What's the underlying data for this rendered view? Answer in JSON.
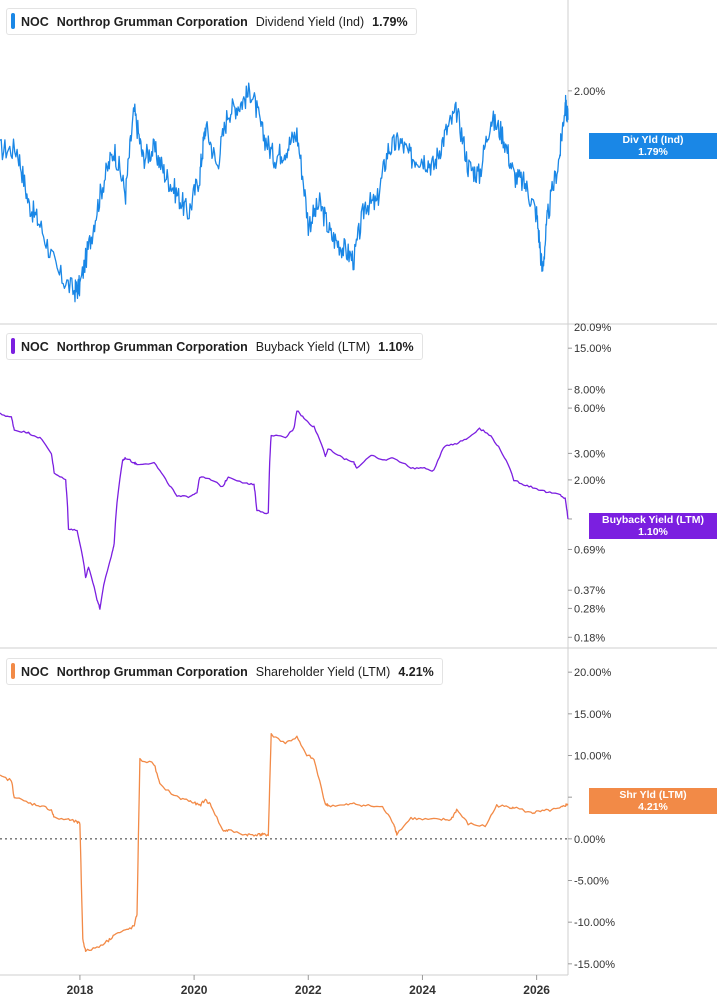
{
  "chart_data": [
    {
      "type": "line",
      "ticker": "NOC",
      "company": "Northrop Grumman Corporation",
      "metric": "Dividend Yield (Ind)",
      "current_value": "1.79%",
      "flag_label": "Div Yld (Ind)",
      "color": "#1a87e6",
      "y_scale": "log",
      "ylim": [
        0.0009,
        0.0225
      ],
      "y_ticks": [
        {
          "v": 0.02,
          "label": "2.00%"
        }
      ],
      "x": [
        2016.6,
        2016.9,
        2017.1,
        2017.3,
        2017.6,
        2017.9,
        2018.0,
        2018.2,
        2018.4,
        2018.6,
        2018.8,
        2018.95,
        2019.1,
        2019.3,
        2019.5,
        2019.7,
        2019.9,
        2020.1,
        2020.2,
        2020.4,
        2020.6,
        2020.8,
        2021.0,
        2021.2,
        2021.4,
        2021.6,
        2021.8,
        2022.0,
        2022.2,
        2022.4,
        2022.6,
        2022.8,
        2023.0,
        2023.2,
        2023.4,
        2023.6,
        2023.8,
        2024.0,
        2024.2,
        2024.4,
        2024.6,
        2024.8,
        2025.0,
        2025.2,
        2025.4,
        2025.6,
        2025.8,
        2026.0,
        2026.1,
        2026.2,
        2026.4,
        2026.5,
        2026.55
      ],
      "values": [
        1.6,
        1.6,
        1.3,
        1.2,
        1.0,
        0.93,
        0.95,
        1.15,
        1.4,
        1.6,
        1.35,
        1.85,
        1.55,
        1.6,
        1.45,
        1.35,
        1.25,
        1.45,
        1.75,
        1.5,
        1.85,
        1.9,
        2.0,
        1.7,
        1.55,
        1.6,
        1.7,
        1.2,
        1.3,
        1.15,
        1.1,
        1.05,
        1.3,
        1.3,
        1.6,
        1.65,
        1.55,
        1.55,
        1.5,
        1.7,
        1.85,
        1.5,
        1.45,
        1.8,
        1.7,
        1.45,
        1.4,
        1.25,
        1.0,
        1.25,
        1.55,
        1.9,
        1.79
      ],
      "ytick_values_pct": [
        2.0
      ],
      "scale_break_label": "20.09%"
    },
    {
      "type": "line",
      "ticker": "NOC",
      "company": "Northrop Grumman Corporation",
      "metric": "Buyback Yield (LTM)",
      "current_value": "1.10%",
      "flag_label": "Buyback Yield (LTM)",
      "color": "#7b1fe0",
      "y_scale": "log",
      "ylim": [
        0.16,
        17.0
      ],
      "ytick_values_pct": [
        0.18,
        0.28,
        0.37,
        0.69,
        1.1,
        2.0,
        3.0,
        6.0,
        8.0,
        15.0
      ],
      "ytick_labels": [
        "0.18%",
        "0.28%",
        "0.37%",
        "0.69%",
        "",
        "2.00%",
        "3.00%",
        "6.00%",
        "8.00%",
        "15.00%"
      ],
      "x": [
        2016.6,
        2016.8,
        2016.85,
        2017.1,
        2017.3,
        2017.5,
        2017.55,
        2017.75,
        2017.8,
        2017.95,
        2018.1,
        2018.15,
        2018.3,
        2018.35,
        2018.55,
        2018.6,
        2018.75,
        2018.8,
        2018.95,
        2019.0,
        2019.3,
        2019.5,
        2019.7,
        2019.9,
        2020.05,
        2020.1,
        2020.3,
        2020.5,
        2020.6,
        2020.9,
        2021.05,
        2021.1,
        2021.3,
        2021.35,
        2021.6,
        2021.75,
        2021.8,
        2021.95,
        2022.1,
        2022.3,
        2022.35,
        2022.6,
        2022.8,
        2022.85,
        2023.1,
        2023.3,
        2023.5,
        2023.8,
        2024.0,
        2024.2,
        2024.4,
        2024.6,
        2024.8,
        2025.0,
        2025.2,
        2025.4,
        2025.6,
        2025.8,
        2026.0,
        2026.2,
        2026.4,
        2026.5,
        2026.55
      ],
      "values": [
        5.5,
        5.2,
        4.3,
        4.1,
        3.8,
        3.0,
        2.2,
        2.0,
        0.95,
        0.92,
        0.45,
        0.52,
        0.32,
        0.28,
        0.62,
        0.75,
        2.7,
        2.8,
        2.6,
        2.55,
        2.6,
        2.0,
        1.55,
        1.55,
        1.65,
        2.1,
        2.0,
        1.8,
        2.1,
        1.9,
        1.85,
        1.25,
        1.2,
        4.0,
        3.8,
        4.4,
        5.8,
        5.0,
        4.5,
        2.9,
        3.2,
        2.8,
        2.6,
        2.4,
        2.9,
        2.7,
        2.8,
        2.4,
        2.4,
        2.3,
        3.4,
        3.5,
        3.8,
        4.4,
        3.9,
        3.0,
        2.0,
        1.85,
        1.75,
        1.65,
        1.6,
        1.5,
        1.1
      ]
    },
    {
      "type": "line",
      "ticker": "NOC",
      "company": "Northrop Grumman Corporation",
      "metric": "Shareholder Yield (LTM)",
      "current_value": "4.21%",
      "flag_label": "Shr Yld (LTM)",
      "color": "#f28a47",
      "y_scale": "linear",
      "ylim": [
        -15.5,
        20.5
      ],
      "ytick_values_pct": [
        -15,
        -10,
        -5,
        0,
        5,
        10,
        15,
        20
      ],
      "ytick_labels": [
        "-15.00%",
        "-10.00%",
        "-5.00%",
        "0.00%",
        "",
        "10.00%",
        "15.00%",
        "20.00%"
      ],
      "zero_line": true,
      "x": [
        2016.6,
        2016.8,
        2016.85,
        2017.1,
        2017.3,
        2017.5,
        2017.55,
        2017.8,
        2017.95,
        2018.0,
        2018.05,
        2018.1,
        2018.3,
        2018.5,
        2018.6,
        2018.8,
        2018.95,
        2019.0,
        2019.05,
        2019.3,
        2019.4,
        2019.7,
        2019.9,
        2020.0,
        2020.1,
        2020.2,
        2020.3,
        2020.5,
        2020.6,
        2020.9,
        2021.0,
        2021.15,
        2021.2,
        2021.3,
        2021.35,
        2021.6,
        2021.8,
        2021.95,
        2022.1,
        2022.3,
        2022.35,
        2022.6,
        2022.8,
        2023.0,
        2023.3,
        2023.5,
        2023.55,
        2023.8,
        2024.0,
        2024.3,
        2024.5,
        2024.6,
        2024.8,
        2025.1,
        2025.3,
        2025.5,
        2025.6,
        2025.9,
        2026.0,
        2026.2,
        2026.4,
        2026.5,
        2026.55
      ],
      "values": [
        7.5,
        7.0,
        5.0,
        4.3,
        4.0,
        3.5,
        2.5,
        2.3,
        2.0,
        1.8,
        -12.0,
        -13.5,
        -13.0,
        -12.2,
        -11.5,
        -11.0,
        -10.5,
        -9.0,
        9.5,
        9.0,
        6.5,
        5.0,
        4.6,
        4.3,
        4.0,
        4.7,
        4.0,
        1.0,
        1.0,
        0.5,
        0.5,
        0.5,
        0.5,
        0.5,
        12.5,
        11.5,
        12.2,
        10.2,
        9.5,
        4.2,
        4.0,
        4.0,
        4.2,
        4.0,
        3.8,
        1.8,
        0.6,
        2.5,
        2.3,
        2.3,
        2.3,
        3.5,
        1.8,
        1.5,
        4.0,
        3.8,
        3.8,
        3.1,
        3.2,
        3.4,
        3.6,
        4.0,
        4.21
      ]
    }
  ],
  "x_axis": {
    "tick_years": [
      2018,
      2020,
      2022,
      2024,
      2026
    ],
    "tick_labels": [
      "2018",
      "2020",
      "2022",
      "2024",
      "2026"
    ],
    "xlim": [
      2016.6,
      2026.9
    ]
  }
}
